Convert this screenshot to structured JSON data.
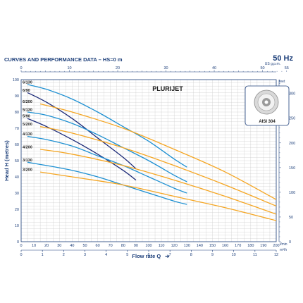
{
  "header": {
    "title": "CURVES AND PERFORMANCE DATA  –  HS=0 m",
    "frequency": "50 Hz"
  },
  "chart_data": {
    "type": "line",
    "title": "PLURIJET",
    "inset_label": "AISI 304",
    "xlabel": "Flow rate Q",
    "ylabel": "Head H (metres)",
    "x_unit": "l/min",
    "top_unit_label": "US g.p.m.",
    "right_unit_label": "feet",
    "bottom_unit2_label": "m³/h",
    "xlim": [
      0,
      200
    ],
    "ylim": [
      0,
      100
    ],
    "grid": true,
    "x_ticks": [
      0,
      10,
      20,
      30,
      40,
      50,
      60,
      70,
      80,
      90,
      100,
      110,
      120,
      130,
      140,
      150,
      160,
      170,
      180,
      190,
      200
    ],
    "y_ticks": [
      0,
      10,
      20,
      30,
      40,
      50,
      60,
      70,
      80,
      90,
      100
    ],
    "top_axis": {
      "ticks": [
        0,
        10,
        20,
        30,
        40,
        50,
        55
      ],
      "ratio": 3.785
    },
    "right_axis": {
      "ticks": [
        0,
        50,
        100,
        150,
        200,
        250,
        300
      ],
      "ratio": 0.3048
    },
    "bottom2_axis": {
      "ticks": [
        0,
        1,
        2,
        3,
        4,
        5,
        6,
        7,
        8,
        9,
        10,
        11,
        12
      ],
      "ratio": 16.667
    },
    "colors": {
      "blue": "#1e90d2",
      "navy": "#1c2a78",
      "orange": "#f5a623",
      "axis": "#1d3f7a",
      "grid": "#c9c9c9"
    },
    "series": [
      {
        "name": "6/130",
        "color": "blue",
        "x": [
          5,
          20,
          40,
          60,
          80,
          100,
          120,
          130
        ],
        "y": [
          97,
          94,
          88,
          80,
          71,
          62,
          51,
          46
        ]
      },
      {
        "name": "6/90",
        "color": "navy",
        "x": [
          5,
          20,
          40,
          60,
          80,
          90
        ],
        "y": [
          92,
          86,
          76,
          64,
          52,
          45
        ]
      },
      {
        "name": "6/200",
        "color": "orange",
        "x": [
          15,
          40,
          80,
          120,
          160,
          200
        ],
        "y": [
          85,
          80,
          70,
          57,
          43,
          26
        ]
      },
      {
        "name": "5/130",
        "color": "blue",
        "x": [
          5,
          20,
          40,
          60,
          80,
          100,
          120,
          130
        ],
        "y": [
          80,
          78,
          73,
          66,
          58,
          50,
          41,
          37
        ]
      },
      {
        "name": "5/90",
        "color": "navy",
        "x": [
          5,
          20,
          40,
          60,
          80,
          90
        ],
        "y": [
          76,
          71,
          63,
          54,
          44,
          38
        ]
      },
      {
        "name": "5/200",
        "color": "orange",
        "x": [
          15,
          40,
          80,
          120,
          160,
          200
        ],
        "y": [
          71,
          67,
          58,
          47,
          35,
          22
        ]
      },
      {
        "name": "4/130",
        "color": "blue",
        "x": [
          5,
          20,
          40,
          60,
          80,
          100,
          120,
          130
        ],
        "y": [
          65,
          63,
          59,
          53,
          47,
          40,
          33,
          30
        ]
      },
      {
        "name": "4/200",
        "color": "orange",
        "x": [
          15,
          40,
          80,
          120,
          160,
          200
        ],
        "y": [
          57,
          54,
          47,
          38,
          28,
          17
        ]
      },
      {
        "name": "3/130",
        "color": "blue",
        "x": [
          5,
          20,
          40,
          60,
          80,
          100,
          120,
          130
        ],
        "y": [
          49,
          47,
          44,
          40,
          35,
          30,
          25,
          23
        ]
      },
      {
        "name": "3/200",
        "color": "orange",
        "x": [
          15,
          40,
          80,
          120,
          160,
          200
        ],
        "y": [
          43,
          40,
          35,
          28,
          21,
          13
        ]
      }
    ]
  }
}
